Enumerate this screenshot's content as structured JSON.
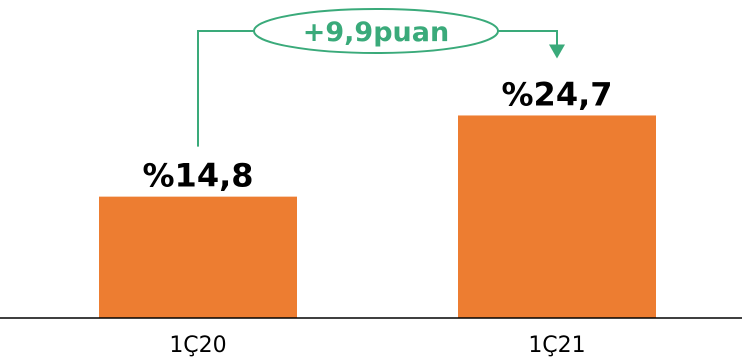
{
  "chart_data": {
    "type": "bar",
    "categories": [
      "1Ç20",
      "1Ç21"
    ],
    "values": [
      14.8,
      24.7
    ],
    "data_labels": [
      "%14,8",
      "%24,7"
    ],
    "annotation": "+9,9puan",
    "title": "",
    "xlabel": "",
    "ylabel": "",
    "ylim": [
      0,
      30
    ],
    "grid": false,
    "legend": "none"
  },
  "colors": {
    "bar": "#ed7d31",
    "annotation": "#3aaa7a",
    "axis": "#000000"
  }
}
